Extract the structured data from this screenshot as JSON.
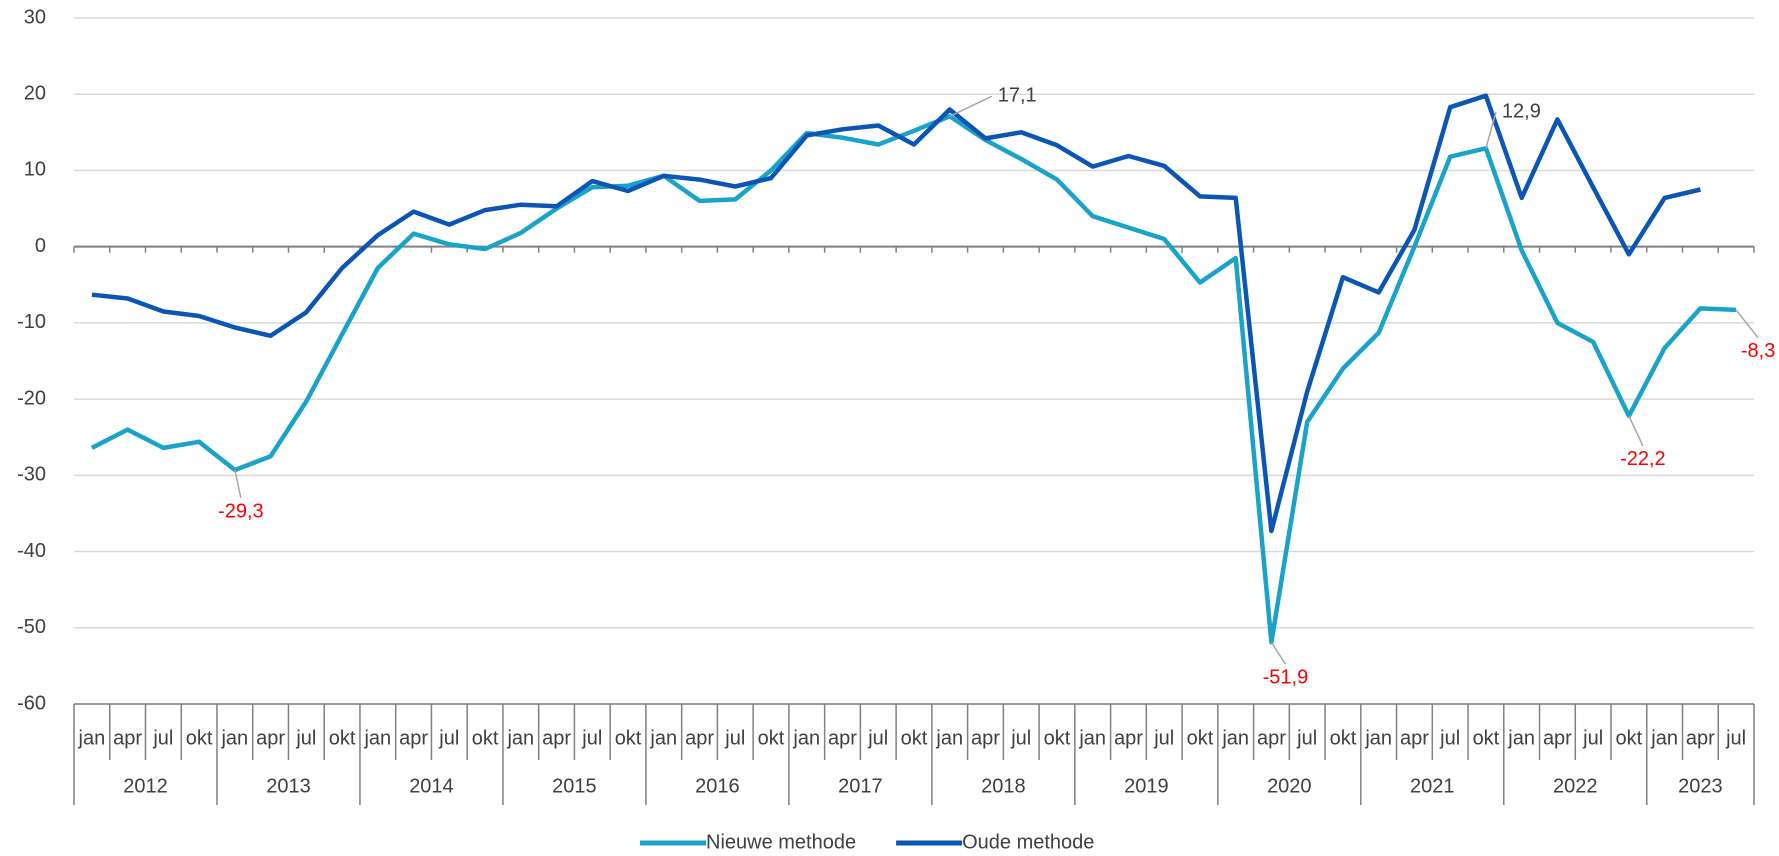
{
  "chart_data": {
    "type": "line",
    "categories": [
      "jan",
      "apr",
      "jul",
      "okt",
      "jan",
      "apr",
      "jul",
      "okt",
      "jan",
      "apr",
      "jul",
      "okt",
      "jan",
      "apr",
      "jul",
      "okt",
      "jan",
      "apr",
      "jul",
      "okt",
      "jan",
      "apr",
      "jul",
      "okt",
      "jan",
      "apr",
      "jul",
      "okt",
      "jan",
      "apr",
      "jul",
      "okt",
      "jan",
      "apr",
      "jul",
      "okt",
      "jan",
      "apr",
      "jul",
      "okt",
      "jan",
      "apr",
      "jul",
      "okt",
      "jan",
      "apr",
      "jul"
    ],
    "years": [
      "2012",
      "2013",
      "2014",
      "2015",
      "2016",
      "2017",
      "2018",
      "2019",
      "2020",
      "2021",
      "2022",
      "2023"
    ],
    "series": [
      {
        "name": "Nieuwe methode",
        "color": "#1aa3c9",
        "values": [
          -26.4,
          -24.0,
          -26.4,
          -25.6,
          -29.3,
          -27.5,
          -20.3,
          -11.5,
          -2.8,
          1.7,
          0.3,
          -0.3,
          1.8,
          5.0,
          7.8,
          8.0,
          9.3,
          6.0,
          6.2,
          10.0,
          14.9,
          14.3,
          13.4,
          15.2,
          17.1,
          14.0,
          11.5,
          8.8,
          4.0,
          2.5,
          1.0,
          -4.7,
          -1.5,
          -51.9,
          -23.0,
          -16.0,
          -11.3,
          0.0,
          11.8,
          12.9,
          -0.5,
          -10.0,
          -12.5,
          -22.2,
          -13.3,
          -8.1,
          -8.3
        ],
        "value_labels": [
          null,
          null,
          null,
          null,
          "-29,3",
          null,
          null,
          null,
          null,
          null,
          null,
          null,
          null,
          null,
          null,
          null,
          null,
          null,
          null,
          null,
          null,
          null,
          null,
          null,
          "17,1",
          null,
          null,
          null,
          null,
          null,
          null,
          null,
          null,
          "-51,9",
          null,
          null,
          null,
          null,
          null,
          "12,9",
          null,
          null,
          null,
          "-22,2",
          null,
          null,
          "-8,3"
        ]
      },
      {
        "name": "Oude methode",
        "color": "#0b56b5",
        "values": [
          -6.3,
          -6.8,
          -8.5,
          -9.1,
          -10.6,
          -11.7,
          -8.6,
          -2.8,
          1.5,
          4.6,
          2.9,
          4.8,
          5.5,
          5.3,
          8.6,
          7.3,
          9.3,
          8.8,
          7.9,
          9.0,
          14.6,
          15.4,
          15.9,
          13.4,
          18.0,
          14.2,
          15.0,
          13.3,
          10.5,
          11.9,
          10.6,
          6.6,
          6.4,
          -37.3,
          -19.0,
          -4.0,
          -6.0,
          2.2,
          18.3,
          19.8,
          6.4,
          16.7,
          7.8,
          -1.0,
          6.4,
          7.5,
          null
        ]
      }
    ],
    "ylim": [
      -60,
      30
    ],
    "yticks": [
      -60,
      -50,
      -40,
      -30,
      -20,
      -10,
      0,
      10,
      20,
      30
    ],
    "grid": true,
    "legend": "bottom"
  }
}
